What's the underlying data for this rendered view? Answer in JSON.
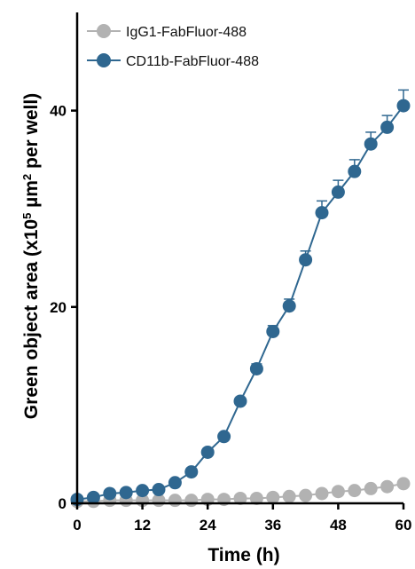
{
  "chart_data": {
    "type": "line",
    "xlabel": "Time (h)",
    "ylabel": {
      "prefix": "Green object area (x10",
      "sup1": "5",
      "middle": " µm",
      "sup2": "2",
      "suffix": " per well)"
    },
    "xlim": [
      0,
      60
    ],
    "ylim": [
      0,
      50
    ],
    "x_ticks": [
      0,
      12,
      24,
      36,
      48,
      60
    ],
    "y_ticks": [
      0,
      20,
      40
    ],
    "grid": false,
    "legend_position": "top-left",
    "series": [
      {
        "name": "IgG1-FabFluor-488",
        "color": "#b2b2b2",
        "x": [
          0,
          3,
          6,
          9,
          12,
          15,
          18,
          21,
          24,
          27,
          30,
          33,
          36,
          39,
          42,
          45,
          48,
          51,
          54,
          57,
          60
        ],
        "y": [
          0.2,
          0.2,
          0.3,
          0.3,
          0.3,
          0.3,
          0.3,
          0.3,
          0.4,
          0.4,
          0.5,
          0.5,
          0.6,
          0.7,
          0.8,
          1.0,
          1.2,
          1.3,
          1.5,
          1.7,
          2.0
        ]
      },
      {
        "name": "CD11b-FabFluor-488",
        "color": "#2f6790",
        "x": [
          0,
          3,
          6,
          9,
          12,
          15,
          18,
          21,
          24,
          27,
          30,
          33,
          36,
          39,
          42,
          45,
          48,
          51,
          54,
          57,
          60
        ],
        "y": [
          0.4,
          0.6,
          1.0,
          1.1,
          1.3,
          1.4,
          2.1,
          3.2,
          5.2,
          6.8,
          10.4,
          13.7,
          17.5,
          20.1,
          24.8,
          29.6,
          31.7,
          33.8,
          36.6,
          38.3,
          40.5
        ],
        "error": [
          0,
          0,
          0,
          0,
          0,
          0,
          0,
          0,
          0,
          0,
          0,
          0.5,
          0.6,
          0.7,
          0.9,
          1.2,
          1.2,
          1.2,
          1.2,
          1.2,
          1.6
        ]
      }
    ]
  }
}
